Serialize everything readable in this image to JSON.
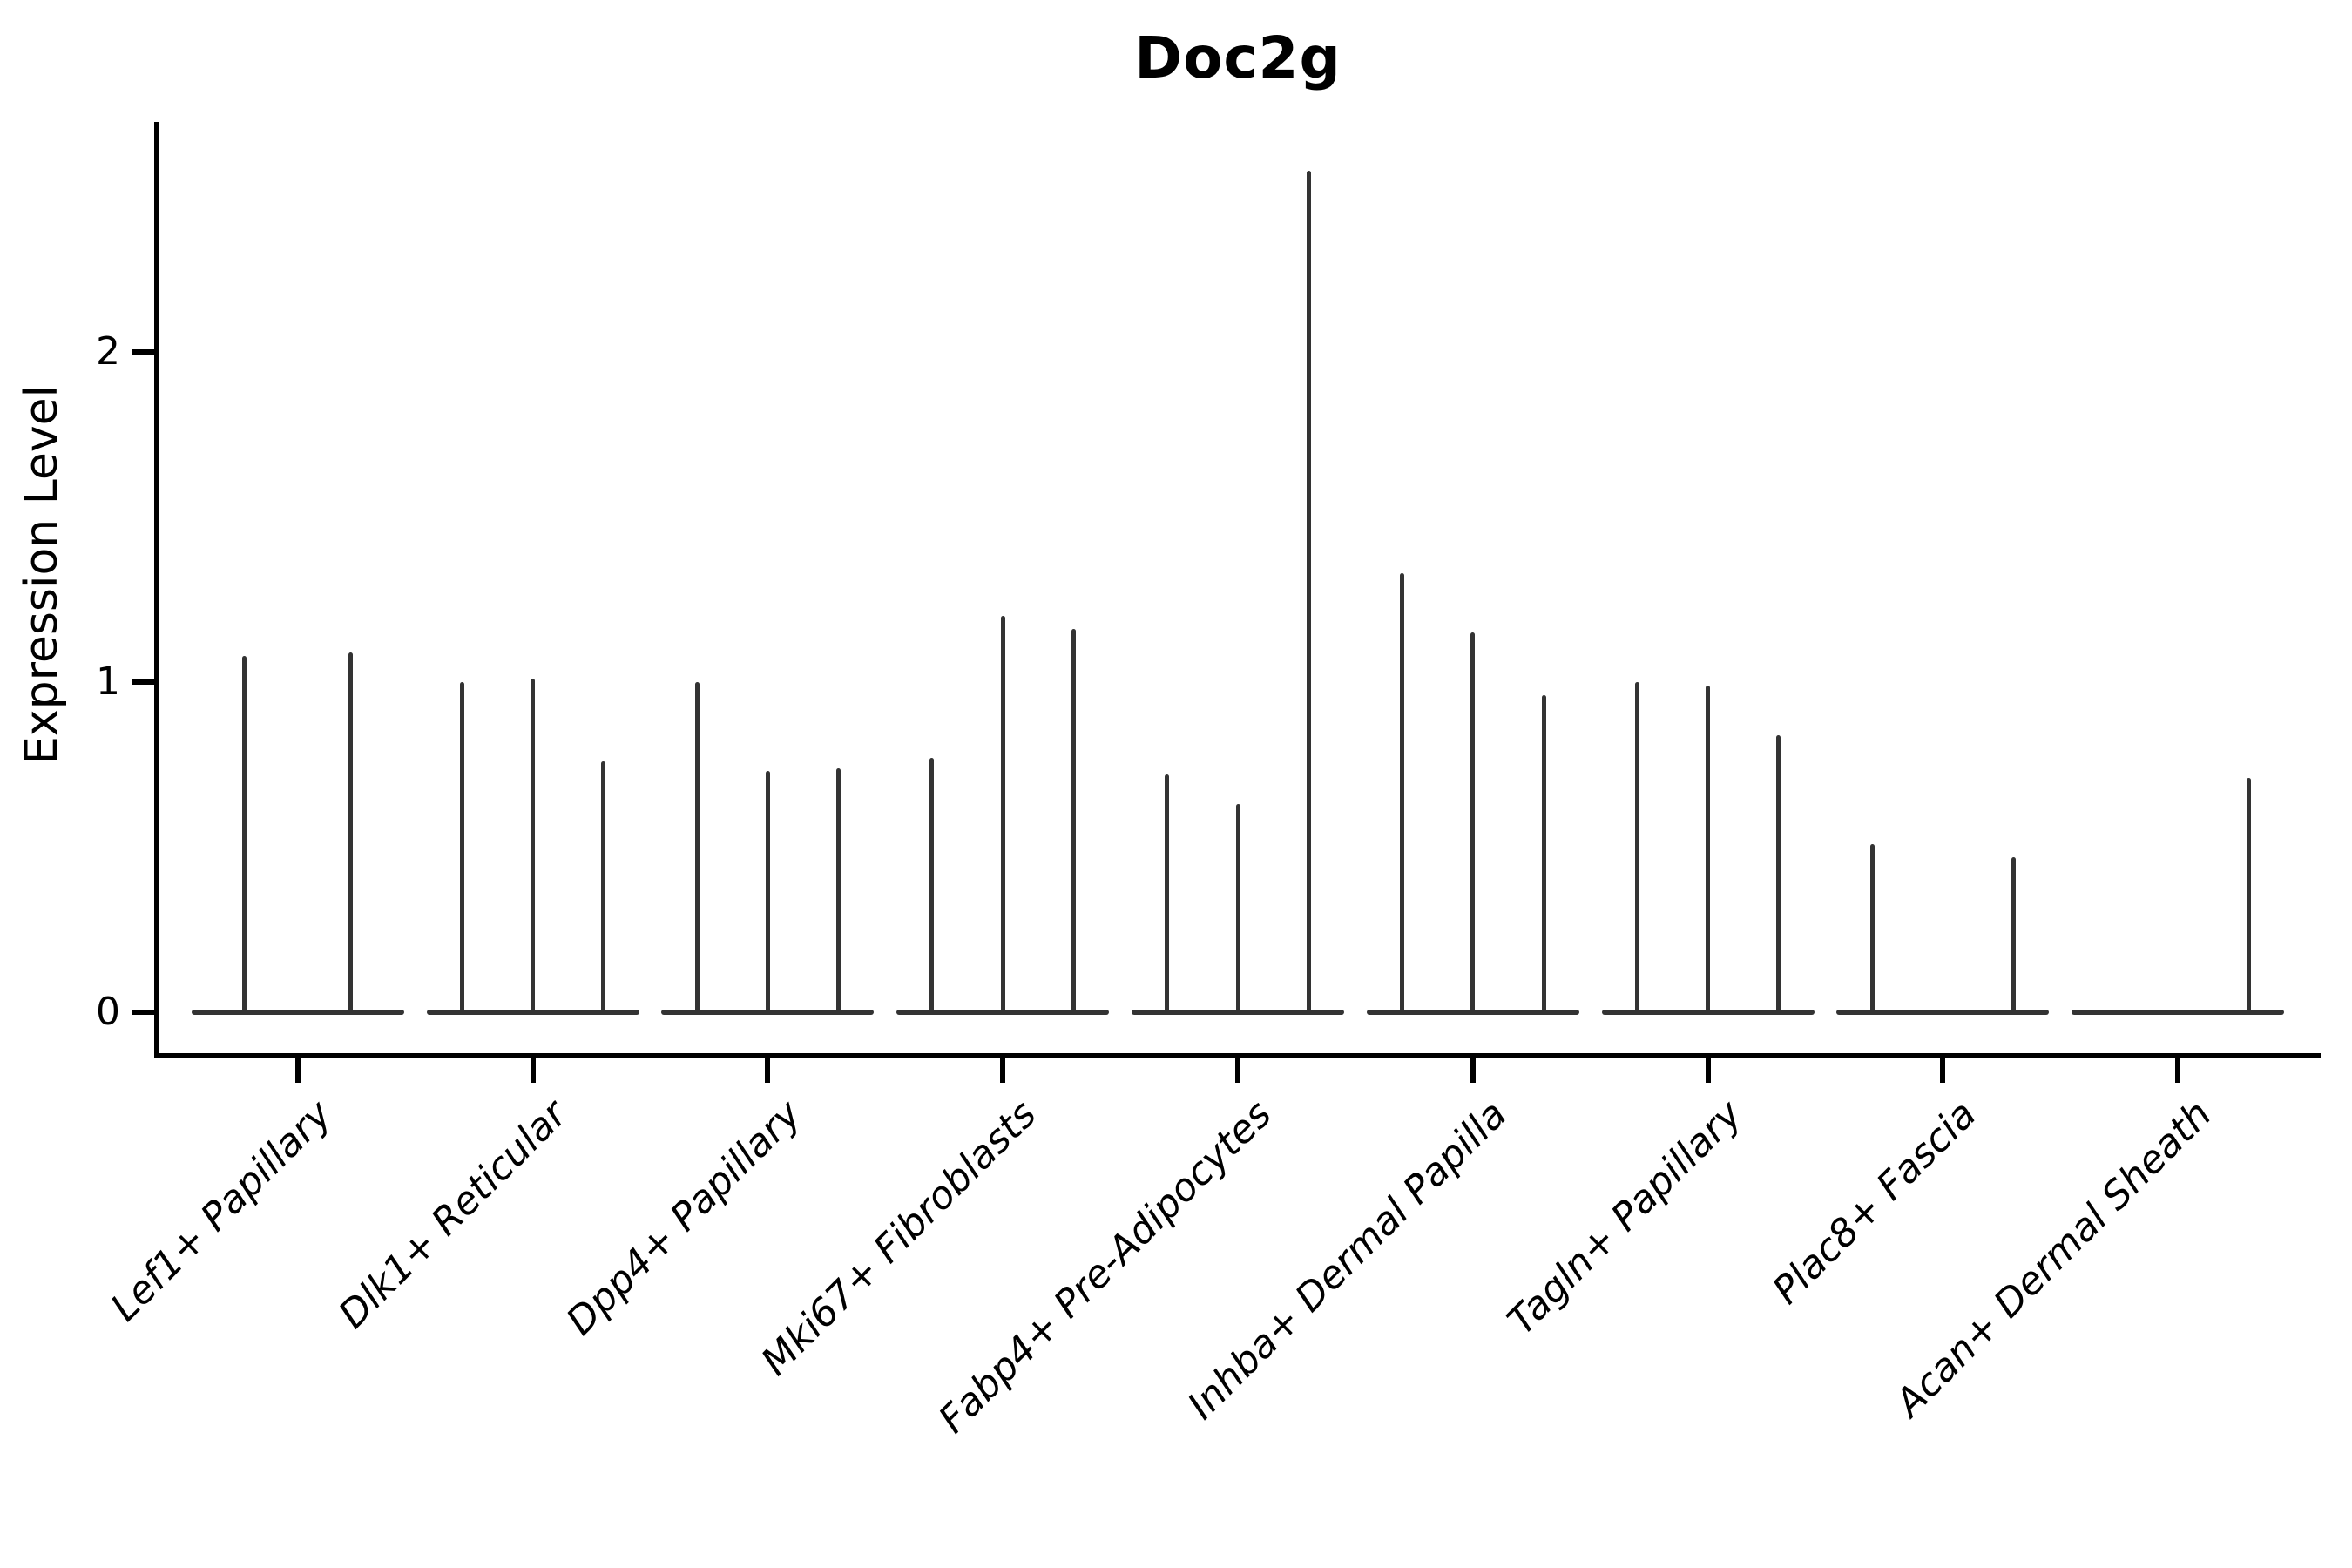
{
  "window": {
    "background": "#ffffff"
  },
  "chart_data": {
    "type": "violin",
    "title": "Doc2g",
    "xlabel": "",
    "ylabel": "Expression Level",
    "yticks": [
      0,
      1,
      2
    ],
    "ylim": [
      0,
      2.7
    ],
    "grid": false,
    "legend": "none",
    "x_tick_rotation_deg": 45,
    "categories": [
      "Lef1+ Papillary",
      "Dlk1+ Reticular",
      "Dpp4+ Papillary",
      "Mki67+ Fibroblasts",
      "Fabp4+ Pre-Adipocytes",
      "Inhba+ Dermal Papilla",
      "Tagln+ Papillary",
      "Plac8+ Fascia",
      "Acan+ Dermal Sheath"
    ],
    "groups": [
      {
        "category": "Lef1+ Papillary",
        "violin_max_values": [
          1.08,
          1.09
        ]
      },
      {
        "category": "Dlk1+ Reticular",
        "violin_max_values": [
          1.0,
          1.01,
          0.76
        ]
      },
      {
        "category": "Dpp4+ Papillary",
        "violin_max_values": [
          1.0,
          0.73,
          0.74
        ]
      },
      {
        "category": "Mki67+ Fibroblasts",
        "violin_max_values": [
          0.77,
          1.2,
          1.16
        ]
      },
      {
        "category": "Fabp4+ Pre-Adipocytes",
        "violin_max_values": [
          0.72,
          0.63,
          2.55
        ]
      },
      {
        "category": "Inhba+ Dermal Papilla",
        "violin_max_values": [
          1.33,
          1.15,
          0.96
        ]
      },
      {
        "category": "Tagln+ Papillary",
        "violin_max_values": [
          1.0,
          0.99,
          0.84
        ]
      },
      {
        "category": "Plac8+ Fascia",
        "violin_max_values": [
          0.51,
          null,
          0.47
        ]
      },
      {
        "category": "Acan+ Dermal Sheath",
        "violin_max_values": [
          null,
          null,
          0.71
        ]
      }
    ],
    "colors": {
      "violin_stroke": "#333333",
      "axis": "#000000",
      "text": "#000000",
      "background": "#ffffff"
    }
  }
}
